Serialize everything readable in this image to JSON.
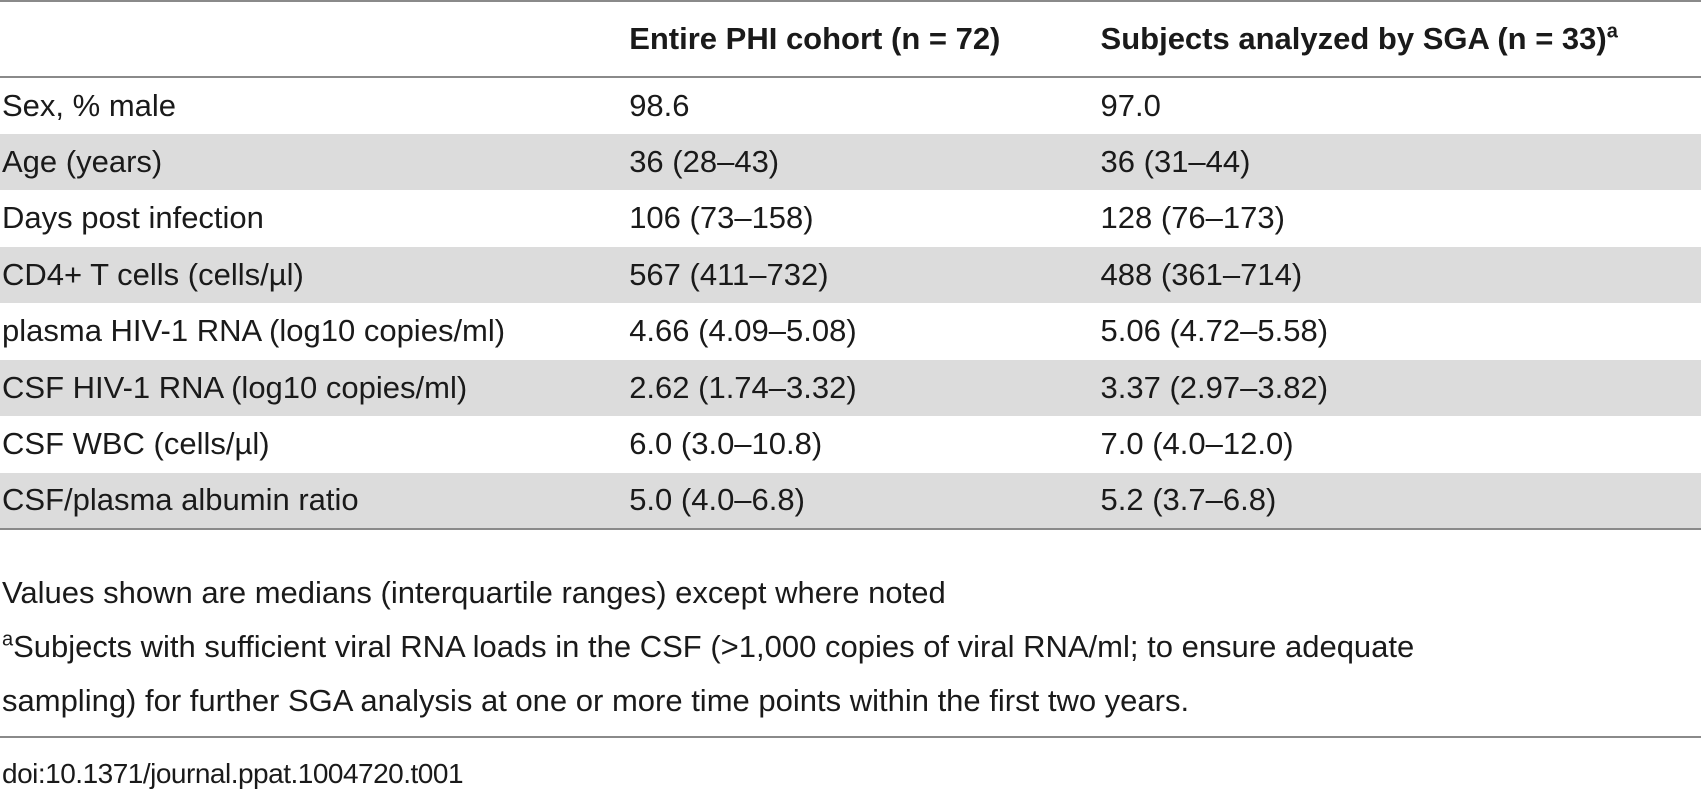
{
  "table": {
    "headers": {
      "label": "",
      "col_a": "Entire PHI cohort (n = 72)",
      "col_b": "Subjects analyzed by SGA (n = 33)",
      "col_b_mark": "a"
    },
    "rows": [
      {
        "label": "Sex, % male",
        "a": "98.6",
        "b": "97.0"
      },
      {
        "label": "Age (years)",
        "a": "36 (28–43)",
        "b": "36 (31–44)"
      },
      {
        "label": "Days post infection",
        "a": "106 (73–158)",
        "b": "128 (76–173)"
      },
      {
        "label": "CD4+ T cells (cells/µl)",
        "a": "567 (411–732)",
        "b": "488 (361–714)"
      },
      {
        "label": "plasma HIV-1 RNA (log10 copies/ml)",
        "a": "4.66 (4.09–5.08)",
        "b": "5.06 (4.72–5.58)"
      },
      {
        "label": "CSF HIV-1 RNA (log10 copies/ml)",
        "a": "2.62 (1.74–3.32)",
        "b": "3.37 (2.97–3.82)"
      },
      {
        "label": "CSF WBC (cells/µl)",
        "a": "6.0 (3.0–10.8)",
        "b": "7.0 (4.0–12.0)"
      },
      {
        "label": "CSF/plasma albumin ratio",
        "a": "5.0 (4.0–6.8)",
        "b": "5.2 (3.7–6.8)"
      }
    ]
  },
  "footnotes": {
    "note": "Values shown are medians (interquartile ranges) except where noted",
    "a_mark": "a",
    "a_text_line1": "Subjects with sufficient viral RNA loads in the CSF (>1,000 copies of viral RNA/ml; to ensure adequate",
    "a_text_line2": "sampling) for further SGA analysis at one or more time points within the first two years."
  },
  "doi": "doi:10.1371/journal.ppat.1004720.t001"
}
